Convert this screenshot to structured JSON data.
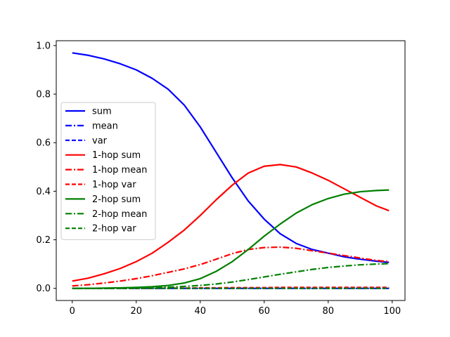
{
  "chart_data": {
    "type": "line",
    "title": "",
    "xlabel": "",
    "ylabel": "",
    "xlim": [
      -5,
      104
    ],
    "ylim": [
      -0.05,
      1.02
    ],
    "x_ticks": [
      0,
      20,
      40,
      60,
      80,
      100
    ],
    "y_ticks": [
      0.0,
      0.2,
      0.4,
      0.6,
      0.8,
      1.0
    ],
    "x_tick_labels": [
      "0",
      "20",
      "40",
      "60",
      "80",
      "100"
    ],
    "y_tick_labels": [
      "0.0",
      "0.2",
      "0.4",
      "0.6",
      "0.8",
      "1.0"
    ],
    "grid": false,
    "legend_position": "center-left",
    "x": [
      0,
      5,
      10,
      15,
      20,
      25,
      30,
      35,
      40,
      45,
      50,
      55,
      60,
      65,
      70,
      75,
      80,
      85,
      90,
      95,
      99
    ],
    "series": [
      {
        "name": "sum",
        "color": "#0000ff",
        "style": "solid",
        "values": [
          0.97,
          0.96,
          0.945,
          0.925,
          0.9,
          0.865,
          0.82,
          0.755,
          0.665,
          0.56,
          0.455,
          0.36,
          0.285,
          0.225,
          0.185,
          0.16,
          0.145,
          0.13,
          0.12,
          0.112,
          0.107
        ]
      },
      {
        "name": "mean",
        "color": "#0000ff",
        "style": "dashdot",
        "values": [
          0,
          0,
          0,
          0,
          0,
          0,
          0,
          0,
          0,
          0,
          0,
          0,
          0,
          0,
          0,
          0,
          0,
          0,
          0,
          0,
          0
        ]
      },
      {
        "name": "var",
        "color": "#0000ff",
        "style": "dashed",
        "values": [
          0,
          0,
          0,
          0,
          0,
          0,
          0,
          0,
          0,
          0,
          0,
          0,
          0,
          0,
          0,
          0,
          0,
          0,
          0,
          0,
          0
        ]
      },
      {
        "name": "1-hop sum",
        "color": "#ff0000",
        "style": "solid",
        "values": [
          0.03,
          0.042,
          0.06,
          0.082,
          0.11,
          0.145,
          0.19,
          0.24,
          0.3,
          0.365,
          0.425,
          0.475,
          0.503,
          0.51,
          0.5,
          0.475,
          0.445,
          0.41,
          0.375,
          0.34,
          0.32
        ]
      },
      {
        "name": "1-hop mean",
        "color": "#ff0000",
        "style": "dashdot",
        "values": [
          0.01,
          0.015,
          0.022,
          0.03,
          0.04,
          0.052,
          0.066,
          0.08,
          0.098,
          0.12,
          0.143,
          0.16,
          0.168,
          0.17,
          0.165,
          0.155,
          0.145,
          0.135,
          0.125,
          0.115,
          0.11
        ]
      },
      {
        "name": "1-hop var",
        "color": "#ff0000",
        "style": "dashed",
        "values": [
          0,
          0,
          0,
          0,
          0,
          0,
          0.001,
          0.001,
          0.002,
          0.002,
          0.003,
          0.003,
          0.003,
          0.004,
          0.004,
          0.004,
          0.004,
          0.004,
          0.004,
          0.004,
          0.004
        ]
      },
      {
        "name": "2-hop sum",
        "color": "#008000",
        "style": "solid",
        "values": [
          0.0,
          0.0,
          0.001,
          0.002,
          0.004,
          0.007,
          0.012,
          0.022,
          0.04,
          0.07,
          0.11,
          0.16,
          0.215,
          0.265,
          0.31,
          0.345,
          0.37,
          0.388,
          0.398,
          0.403,
          0.405
        ]
      },
      {
        "name": "2-hop mean",
        "color": "#008000",
        "style": "dashdot",
        "values": [
          0.0,
          0.0,
          0.0,
          0.001,
          0.002,
          0.003,
          0.005,
          0.008,
          0.012,
          0.018,
          0.026,
          0.036,
          0.047,
          0.058,
          0.068,
          0.078,
          0.086,
          0.092,
          0.097,
          0.1,
          0.102
        ]
      },
      {
        "name": "2-hop var",
        "color": "#008000",
        "style": "dashed",
        "values": [
          0,
          0,
          0,
          0,
          0,
          0,
          0,
          0,
          0,
          0,
          0,
          0,
          0,
          0,
          0,
          0,
          0,
          0,
          0,
          0,
          0
        ]
      }
    ]
  }
}
